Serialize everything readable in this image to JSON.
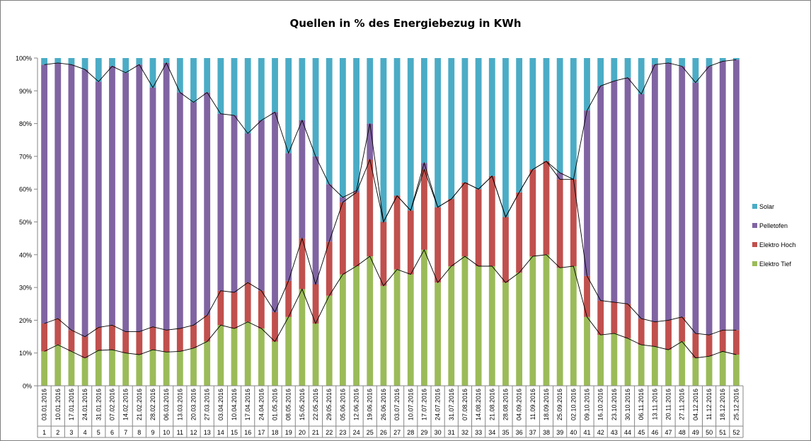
{
  "chart_data": {
    "type": "stacked-bar-percent",
    "title": "Quellen in % des Energiebezug in KWh",
    "xlabel": "",
    "ylabel": "",
    "ylim": [
      0,
      100
    ],
    "y_ticks": [
      "0%",
      "10%",
      "20%",
      "30%",
      "40%",
      "50%",
      "60%",
      "70%",
      "80%",
      "90%",
      "100%"
    ],
    "grid": false,
    "legend_position": "right",
    "week_labels": [
      "1",
      "2",
      "3",
      "4",
      "5",
      "6",
      "7",
      "8",
      "9",
      "10",
      "11",
      "12",
      "13",
      "14",
      "15",
      "16",
      "17",
      "18",
      "19",
      "20",
      "21",
      "22",
      "23",
      "24",
      "25",
      "26",
      "27",
      "28",
      "29",
      "30",
      "31",
      "32",
      "33",
      "34",
      "35",
      "36",
      "37",
      "38",
      "39",
      "40",
      "41",
      "42",
      "43",
      "44",
      "45",
      "46",
      "47",
      "48",
      "49",
      "50",
      "51",
      "52"
    ],
    "categories": [
      "03.01.2016",
      "10.01.2016",
      "17.01.2016",
      "24.01.2016",
      "31.01.2016",
      "07.02.2016",
      "14.02.2016",
      "21.02.2016",
      "28.02.2016",
      "06.03.2016",
      "13.03.2016",
      "20.03.2016",
      "27.03.2016",
      "03.04.2016",
      "10.04.2016",
      "17.04.2016",
      "24.04.2016",
      "01.05.2016",
      "08.05.2016",
      "15.05.2016",
      "22.05.2016",
      "29.05.2016",
      "05.06.2016",
      "12.06.2016",
      "19.06.2016",
      "26.06.2016",
      "03.07.2016",
      "10.07.2016",
      "17.07.2016",
      "24.07.2016",
      "31.07.2016",
      "07.08.2016",
      "14.08.2016",
      "21.08.2016",
      "28.08.2016",
      "04.09.2016",
      "11.09.2016",
      "18.09.2016",
      "25.09.2016",
      "02.10.2016",
      "09.10.2016",
      "16.10.2016",
      "23.10.2016",
      "30.10.2016",
      "06.11.2016",
      "13.11.2016",
      "20.11.2016",
      "27.11.2016",
      "04.12.2016",
      "11.12.2016",
      "18.12.2016",
      "25.12.2016"
    ],
    "series": [
      {
        "name": "Elektro Tief",
        "color": "#9bbb59",
        "values": [
          10.5,
          12.5,
          10.5,
          8.5,
          10.8,
          11.0,
          10.0,
          9.5,
          11.0,
          10.3,
          10.5,
          11.5,
          13.5,
          18.5,
          17.5,
          19.5,
          17.5,
          13.5,
          21.0,
          29.5,
          19.0,
          27.5,
          34.0,
          36.5,
          39.5,
          30.5,
          35.5,
          34.0,
          41.5,
          31.5,
          36.5,
          39.5,
          36.5,
          36.5,
          31.5,
          34.5,
          39.5,
          40.0,
          36.0,
          36.5,
          21.0,
          15.5,
          16.0,
          14.5,
          12.5,
          12.0,
          11.0,
          13.5,
          8.5,
          9.0,
          10.5,
          9.5
        ]
      },
      {
        "name": "Elektro Hoch",
        "color": "#c0504d",
        "values": [
          8.5,
          8.0,
          6.5,
          6.5,
          7.0,
          7.5,
          6.5,
          7.0,
          7.0,
          6.7,
          7.0,
          7.0,
          8.0,
          10.5,
          11.0,
          12.0,
          11.5,
          9.0,
          11.0,
          15.5,
          12.0,
          16.5,
          22.0,
          22.5,
          29.5,
          19.5,
          22.5,
          19.5,
          24.5,
          23.0,
          20.5,
          22.5,
          23.5,
          27.5,
          20.0,
          24.5,
          26.5,
          28.5,
          27.0,
          26.5,
          12.5,
          10.5,
          9.5,
          10.5,
          8.0,
          7.5,
          9.0,
          7.5,
          7.5,
          6.5,
          6.5,
          7.5
        ]
      },
      {
        "name": "Pelletofen",
        "color": "#8064a2",
        "values": [
          79.0,
          78.0,
          81.0,
          81.5,
          75.0,
          79.0,
          79.0,
          81.5,
          73.0,
          81.5,
          72.0,
          68.0,
          68.0,
          54.0,
          54.0,
          45.5,
          52.0,
          61.0,
          39.0,
          36.0,
          39.0,
          17.5,
          1.5,
          0.5,
          11.0,
          0,
          0,
          0,
          2.0,
          0,
          0,
          0,
          0,
          0,
          0,
          0,
          0,
          0,
          2.0,
          0,
          50.5,
          65.5,
          67.5,
          69.0,
          68.5,
          78.5,
          78.5,
          76.5,
          76.5,
          82.0,
          82.0,
          82.5
        ]
      },
      {
        "name": "Solar",
        "color": "#4bacc6",
        "values": [
          2.0,
          1.5,
          2.0,
          3.5,
          7.2,
          2.5,
          4.5,
          2.0,
          9.0,
          1.5,
          10.5,
          13.5,
          10.5,
          17.0,
          17.5,
          23.0,
          19.0,
          16.5,
          29.0,
          19.0,
          30.0,
          38.5,
          42.5,
          40.5,
          20.0,
          50.0,
          42.0,
          46.5,
          32.0,
          45.5,
          43.0,
          38.0,
          40.0,
          36.0,
          48.5,
          41.0,
          34.0,
          31.5,
          35.0,
          37.0,
          16.0,
          8.5,
          7.0,
          6.0,
          11.0,
          2.0,
          1.5,
          2.5,
          7.5,
          2.5,
          1.0,
          0.5
        ]
      }
    ]
  }
}
